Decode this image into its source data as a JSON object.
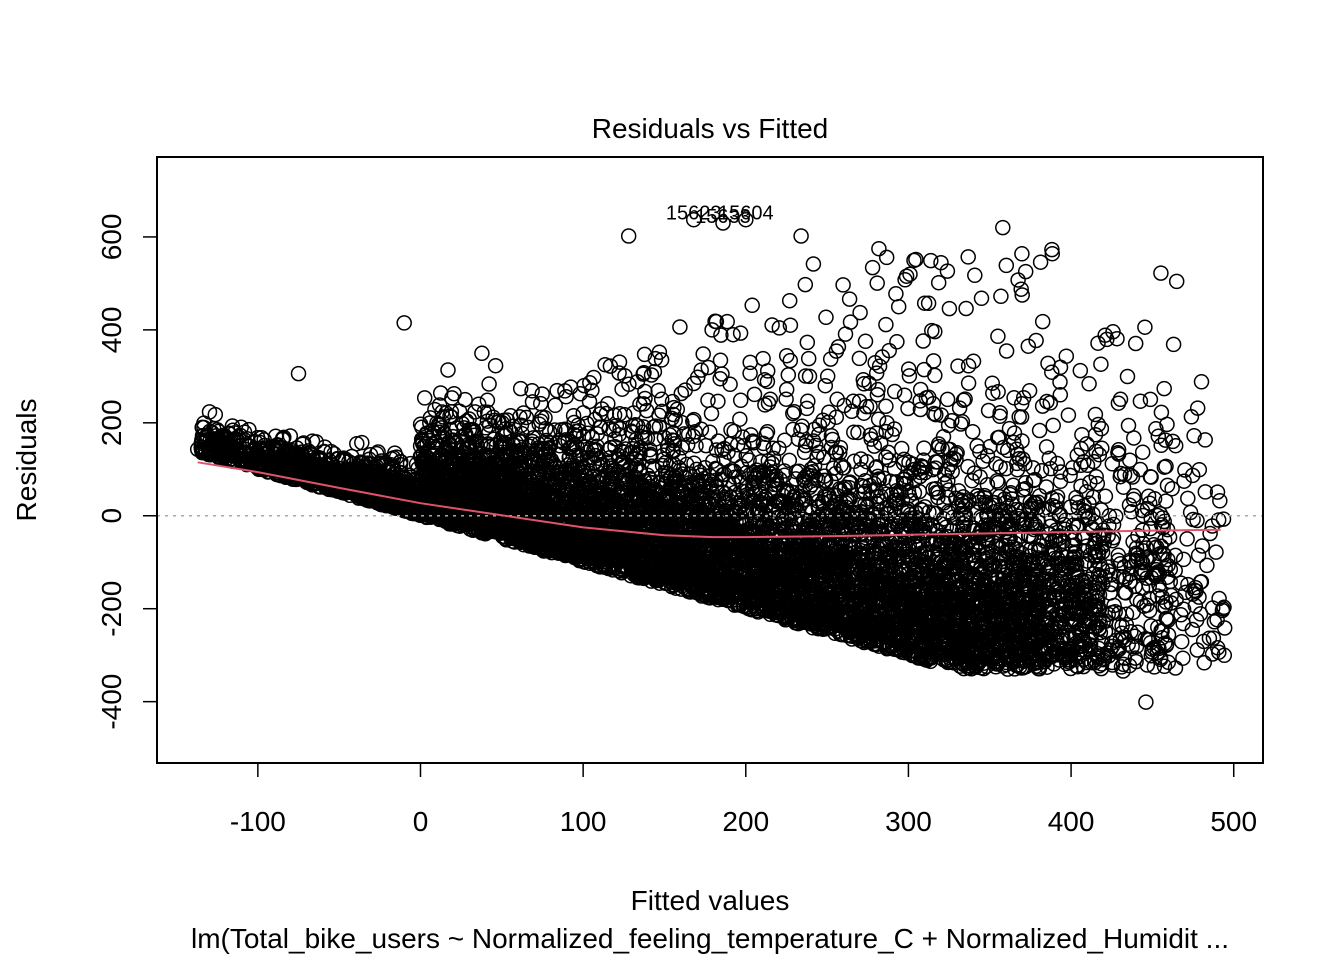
{
  "chart_data": {
    "type": "scatter",
    "title": "Residuals vs Fitted",
    "xlabel": "Fitted values",
    "ylabel": "Residuals",
    "subtitle": "lm(Total_bike_users ~ Normalized_feeling_temperature_C + Normalized_Humidit ...",
    "xlim": [
      -162,
      518
    ],
    "ylim": [
      -532,
      772
    ],
    "x_ticks": [
      -100,
      0,
      100,
      200,
      300,
      400,
      500
    ],
    "y_ticks": [
      -400,
      -200,
      0,
      200,
      400,
      600
    ],
    "zero_reference_line": 0,
    "outlier_labels": [
      {
        "text": "15623",
        "x": 168,
        "y": 637
      },
      {
        "text": "15604",
        "x": 200,
        "y": 637
      },
      {
        "text": "15633",
        "x": 186,
        "y": 630
      }
    ],
    "smooth_line": {
      "color": "#DF536B",
      "x": [
        -137,
        -100,
        -50,
        0,
        50,
        100,
        150,
        180,
        200,
        250,
        300,
        350,
        400,
        450,
        492
      ],
      "y": [
        115,
        94,
        60,
        27,
        1,
        -25,
        -42,
        -46,
        -46,
        -44,
        -41,
        -38,
        -35,
        -32,
        -30
      ]
    },
    "points": {
      "description": "dense scatter of residuals; lower edge follows residual = -fitted (response >= 0)",
      "notable": [
        [
          -137,
          143
        ],
        [
          -129,
          133
        ],
        [
          -123,
          139
        ],
        [
          -110,
          120
        ],
        [
          -75,
          306
        ],
        [
          -10,
          415
        ],
        [
          128,
          602
        ],
        [
          168,
          637
        ],
        [
          200,
          637
        ],
        [
          186,
          630
        ],
        [
          234,
          602
        ],
        [
          358,
          620
        ],
        [
          490,
          51
        ],
        [
          474,
          213
        ],
        [
          475,
          -8
        ],
        [
          491,
          -178
        ],
        [
          494,
          -197
        ],
        [
          446,
          -401
        ],
        [
          468,
          -271
        ],
        [
          432,
          -334
        ],
        [
          455,
          -309
        ],
        [
          380,
          -329
        ],
        [
          360,
          -304
        ]
      ]
    }
  }
}
